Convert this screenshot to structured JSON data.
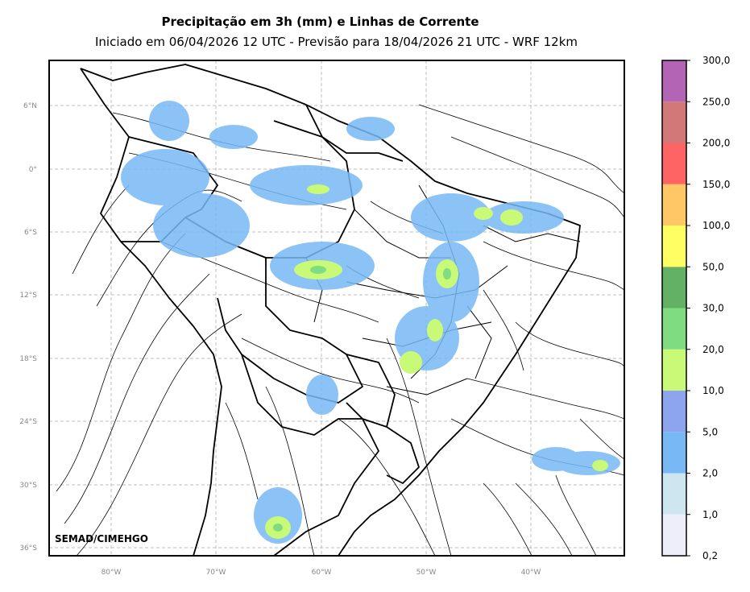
{
  "title": "Precipitação em 3h (mm) e Linhas de Corrente",
  "subtitle": "Iniciado em 06/04/2026 12 UTC - Previsão para 18/04/2026 21 UTC - WRF 12km",
  "credit": "SEMAD/CIMEHGO",
  "map": {
    "lat_ticks": [
      "6°N",
      "0°",
      "6°S",
      "12°S",
      "18°S",
      "24°S",
      "30°S",
      "36°S"
    ],
    "lon_ticks": [
      "80°W",
      "70°W",
      "60°W",
      "50°W",
      "40°W"
    ]
  },
  "colorbar": {
    "levels": [
      "0,2",
      "1,0",
      "2,0",
      "5,0",
      "10,0",
      "20,0",
      "30,0",
      "50,0",
      "100,0",
      "150,0",
      "200,0",
      "250,0",
      "300,0"
    ],
    "colors": [
      "#eeeefa",
      "#cde6f0",
      "#78b9f5",
      "#8ca5ee",
      "#c8fa78",
      "#80dc80",
      "#64b064",
      "#ffff64",
      "#ffc864",
      "#ff6464",
      "#d27878",
      "#b464b4"
    ]
  }
}
